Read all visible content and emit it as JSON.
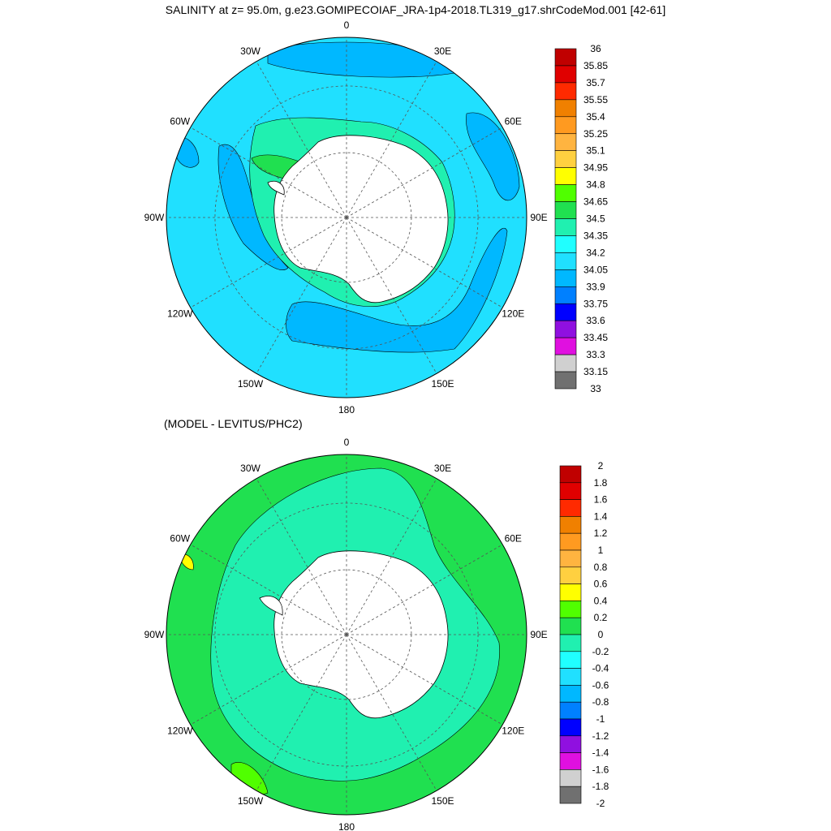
{
  "title": "SALINITY at z=  95.0m, g.e23.GOMIPECOIAF_JRA-1p4-2018.TL319_g17.shrCodeMod.001 [42-61]",
  "subtitle": "(MODEL - LEVITUS/PHC2)",
  "lon_labels": [
    "0",
    "30E",
    "60E",
    "90E",
    "120E",
    "150E",
    "180",
    "150W",
    "120W",
    "90W",
    "60W",
    "30W"
  ],
  "colors": {
    "land": "#ffffff",
    "coast": "#000000",
    "grid": "#555555"
  },
  "top_map": {
    "colorbar_labels": [
      "36",
      "35.85",
      "35.7",
      "35.55",
      "35.4",
      "35.25",
      "35.1",
      "34.95",
      "34.8",
      "34.65",
      "34.5",
      "34.35",
      "34.2",
      "34.05",
      "33.9",
      "33.75",
      "33.6",
      "33.45",
      "33.3",
      "33.15",
      "33"
    ],
    "colorbar_colors": [
      "#c00000",
      "#e00000",
      "#ff2a00",
      "#f08000",
      "#ff9a20",
      "#ffb440",
      "#ffd040",
      "#ffff00",
      "#50ff00",
      "#20e050",
      "#20f0b0",
      "#20ffff",
      "#20e0ff",
      "#00b8ff",
      "#0080ff",
      "#0000ff",
      "#9010e0",
      "#e010e0",
      "#d0d0d0",
      "#707070"
    ],
    "background_color": "#20e0ff",
    "regions": [
      {
        "name": "weddell-fresh",
        "color": "#00b8ff"
      },
      {
        "name": "ross-fresh",
        "color": "#00b8ff"
      },
      {
        "name": "shelf-salty",
        "color": "#20f0b0"
      },
      {
        "name": "weddell-shelf",
        "color": "#20e050"
      }
    ]
  },
  "bottom_map": {
    "colorbar_labels": [
      "2",
      "1.8",
      "1.6",
      "1.4",
      "1.2",
      "1",
      "0.8",
      "0.6",
      "0.4",
      "0.2",
      "0",
      "-0.2",
      "-0.4",
      "-0.6",
      "-0.8",
      "-1",
      "-1.2",
      "-1.4",
      "-1.6",
      "-1.8",
      "-2"
    ],
    "colorbar_colors": [
      "#c00000",
      "#e00000",
      "#ff2a00",
      "#f08000",
      "#ff9a20",
      "#ffb440",
      "#ffd040",
      "#ffff00",
      "#50ff00",
      "#20e050",
      "#20f0b0",
      "#20ffff",
      "#20e0ff",
      "#00b8ff",
      "#0080ff",
      "#0000ff",
      "#9010e0",
      "#e010e0",
      "#d0d0d0",
      "#707070"
    ],
    "background_color": "#20e050",
    "regions": [
      {
        "name": "inner-ring-fresh",
        "color": "#20f0b0"
      },
      {
        "name": "peninsula-salty",
        "color": "#ffff00"
      }
    ]
  }
}
